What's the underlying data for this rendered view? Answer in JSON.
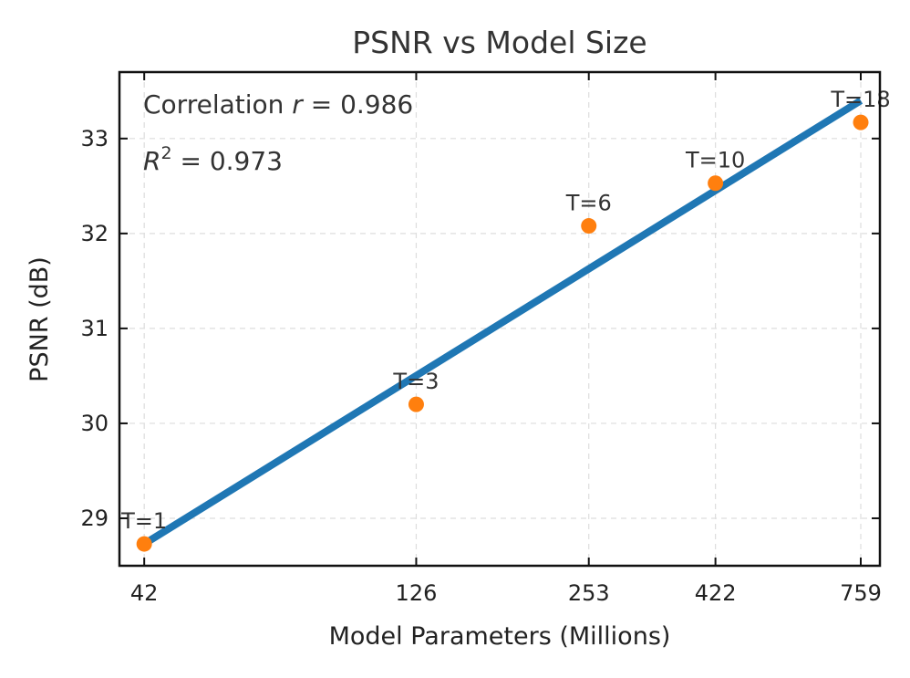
{
  "chart_data": {
    "type": "scatter",
    "title": "PSNR vs Model Size",
    "xlabel": "Model Parameters (Millions)",
    "ylabel": "PSNR (dB)",
    "xscale": "log",
    "xlim": [
      38,
      820
    ],
    "ylim": [
      28.5,
      33.7
    ],
    "grid": true,
    "x_ticks": [
      42,
      126,
      253,
      422,
      759
    ],
    "y_ticks": [
      29,
      30,
      31,
      32,
      33
    ],
    "points": [
      {
        "label": "T=1",
        "x": 42,
        "y": 28.73
      },
      {
        "label": "T=3",
        "x": 126,
        "y": 30.2
      },
      {
        "label": "T=6",
        "x": 253,
        "y": 32.08
      },
      {
        "label": "T=10",
        "x": 422,
        "y": 32.53
      },
      {
        "label": "T=18",
        "x": 759,
        "y": 33.17
      }
    ],
    "fit_line": {
      "x0": 42,
      "y0": 28.73,
      "x1": 759,
      "y1": 33.4
    },
    "annotations": {
      "correlation_prefix": "Correlation ",
      "correlation_symbol": "r",
      "correlation_value": " = 0.986",
      "r2_symbol": "R",
      "r2_exponent": "2",
      "r2_value": " = 0.973"
    },
    "colors": {
      "points": "#ff7f0e",
      "fit_line": "#1f77b4",
      "grid": "#dddddd",
      "axes": "#111111"
    }
  }
}
